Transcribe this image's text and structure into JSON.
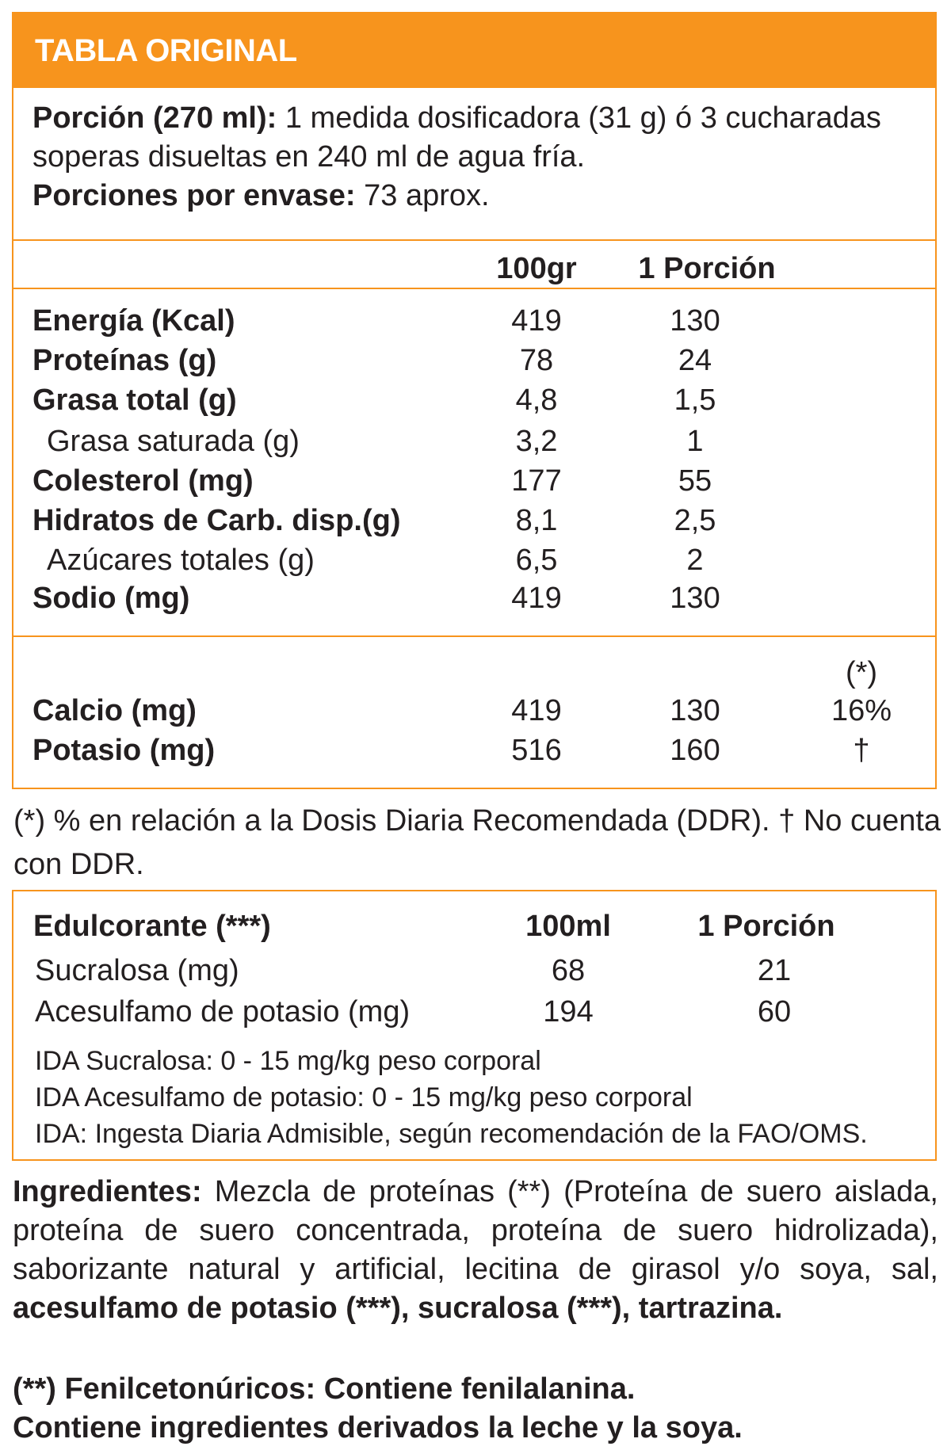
{
  "header": {
    "title": "TABLA ORIGINAL"
  },
  "serving": {
    "portion_label": "Porción (270 ml):",
    "portion_line1": " 1 medida dosificadora (31 g) ó 3 cucharadas",
    "portion_line2": "soperas disueltas en 240 ml de agua fría.",
    "servings_label": "Porciones por envase:",
    "servings_value": " 73 aprox."
  },
  "table": {
    "columns": [
      "100gr",
      "1 Porción"
    ],
    "rows": [
      {
        "label": "Energía (Kcal)",
        "per100": "419",
        "portion": "130",
        "bold": true
      },
      {
        "label": "Proteínas (g)",
        "per100": "78",
        "portion": "24",
        "bold": true
      },
      {
        "label": "Grasa total (g)",
        "per100": "4,8",
        "portion": "1,5",
        "bold": true
      },
      {
        "label": "Grasa saturada (g)",
        "per100": "3,2",
        "portion": "1",
        "bold": false
      },
      {
        "label": "Colesterol (mg)",
        "per100": "177",
        "portion": "55",
        "bold": true
      },
      {
        "label": "Hidratos de Carb. disp.(g)",
        "per100": "8,1",
        "portion": "2,5",
        "bold": true
      },
      {
        "label": "Azúcares totales (g)",
        "per100": "6,5",
        "portion": "2",
        "bold": false
      },
      {
        "label": "Sodio (mg)",
        "per100": "419",
        "portion": "130",
        "bold": true
      }
    ],
    "minerals_pct_header": "(*)",
    "minerals": [
      {
        "label": "Calcio (mg)",
        "per100": "419",
        "portion": "130",
        "pct": "16%"
      },
      {
        "label": "Potasio (mg)",
        "per100": "516",
        "portion": "160",
        "pct": "†"
      }
    ]
  },
  "footnote": {
    "line1": "(*) % en relación a la Dosis Diaria Recomendada (DDR).  † No cuenta",
    "line2": "con DDR."
  },
  "sweeteners": {
    "title": "Edulcorante (***)",
    "col1": "100ml",
    "col2": "1 Porción",
    "rows": [
      {
        "label": "Sucralosa (mg)",
        "per100": "68",
        "portion": "21"
      },
      {
        "label": "Acesulfamo de potasio (mg)",
        "per100": "194",
        "portion": "60"
      }
    ],
    "notes": [
      "IDA Sucralosa: 0 - 15 mg/kg peso corporal",
      "IDA Acesulfamo de potasio: 0 - 15 mg/kg peso corporal",
      "IDA: Ingesta Diaria Admisible, según recomendación de la FAO/OMS."
    ]
  },
  "ingredients": {
    "label": "Ingredientes:",
    "line1": " Mezcla de proteínas (**) (Proteína de suero aislada,",
    "line2": "proteína de suero concentrada, proteína de suero hidrolizada),",
    "line3": "saborizante natural y artificial, lecitina de girasol y/o soya, sal,",
    "line4_bold": "acesulfamo de potasio (***), sucralosa (***), tartrazina."
  },
  "warnings": {
    "line1": "(**) Fenilcetonúricos: Contiene fenilalanina.",
    "line2": "Contiene ingredientes derivados la leche y la soya."
  },
  "colors": {
    "accent": "#f7941d",
    "text": "#231f20"
  }
}
